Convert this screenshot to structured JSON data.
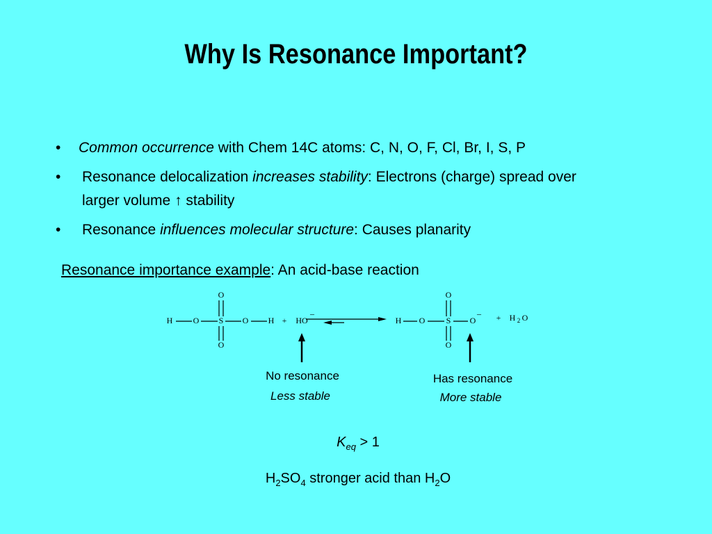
{
  "title": "Why Is Resonance Important?",
  "bullets": [
    {
      "marker": "•",
      "parts": [
        "Common occurrence",
        " with Chem 14C atoms: C, N, O, F, Cl, Br, I, S, P"
      ]
    },
    {
      "marker": "•",
      "parts": [
        "Resonance delocalization ",
        "increases stability",
        ": Electrons (charge) spread over",
        "larger volume ",
        "↑",
        " stability"
      ]
    },
    {
      "marker": "•",
      "parts": [
        "Resonance ",
        "influences molecular structure",
        ": Causes planarity"
      ]
    }
  ],
  "example": {
    "heading": "Resonance importance example",
    "rest": ": An acid-base reaction"
  },
  "reaction": {
    "reactant_chain": [
      "H",
      "O",
      "S",
      "O",
      "H"
    ],
    "reactant_top": "O",
    "reactant_bottom": "O",
    "plus_1": "+",
    "base": "HO",
    "base_charge": "–",
    "product_chain": [
      "H",
      "O",
      "S",
      "O"
    ],
    "product_top": "O",
    "product_bottom": "O",
    "product_charge": "–",
    "plus_2": "+",
    "water": [
      "H",
      "2",
      "O"
    ]
  },
  "annotations": [
    {
      "title": "No resonance",
      "note": "Less stable"
    },
    {
      "title": "Has resonance",
      "note": "More stable"
    }
  ],
  "keq": {
    "symbol": "K",
    "subscript": "eq",
    "relation": " > 1"
  },
  "conclusion": [
    "H",
    "2",
    "SO",
    "4",
    " stronger acid than H",
    "2",
    "O"
  ]
}
